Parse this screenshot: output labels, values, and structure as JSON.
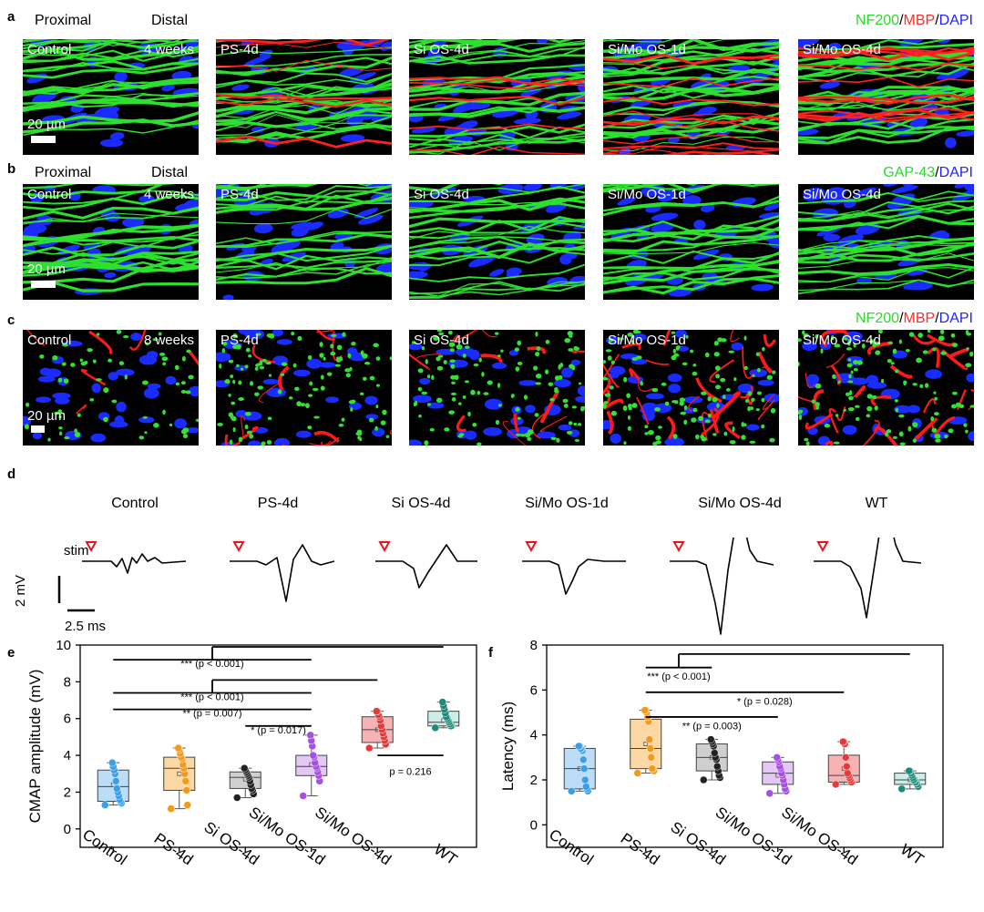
{
  "panel_labels": {
    "a": "a",
    "b": "b",
    "c": "c",
    "d": "d",
    "e": "e",
    "f": "f"
  },
  "panel_a": {
    "proximal": "Proximal",
    "distal": "Distal",
    "stain": [
      {
        "text": "NF200",
        "color": "#2bd82b"
      },
      {
        "text": "/",
        "color": "#000000"
      },
      {
        "text": "MBP",
        "color": "#ff2a2a"
      },
      {
        "text": "/",
        "color": "#000000"
      },
      {
        "text": "DAPI",
        "color": "#2323ff"
      }
    ],
    "tiles": [
      "Control",
      "PS-4d",
      "Si OS-4d",
      "Si/Mo OS-1d",
      "Si/Mo OS-4d"
    ],
    "timepoint": "4 weeks",
    "scale": "20 µm"
  },
  "panel_b": {
    "proximal": "Proximal",
    "distal": "Distal",
    "stain": [
      {
        "text": "GAP-43",
        "color": "#2bd82b"
      },
      {
        "text": "/",
        "color": "#000000"
      },
      {
        "text": "DAPI",
        "color": "#2323ff"
      }
    ],
    "tiles": [
      "Control",
      "PS-4d",
      "Si OS-4d",
      "Si/Mo OS-1d",
      "Si/Mo OS-4d"
    ],
    "timepoint": "4 weeks",
    "scale": "20 µm"
  },
  "panel_c": {
    "stain": [
      {
        "text": "NF200",
        "color": "#2bd82b"
      },
      {
        "text": "/",
        "color": "#000000"
      },
      {
        "text": "MBP",
        "color": "#ff2a2a"
      },
      {
        "text": "/",
        "color": "#000000"
      },
      {
        "text": "DAPI",
        "color": "#2323ff"
      }
    ],
    "tiles": [
      "Control",
      "PS-4d",
      "Si OS-4d",
      "Si/Mo OS-1d",
      "Si/Mo OS-4d"
    ],
    "timepoint": "8 weeks",
    "scale": "20 µm"
  },
  "panel_d": {
    "groups": [
      "Control",
      "PS-4d",
      "Si OS-4d",
      "Si/Mo OS-1d",
      "Si/Mo OS-4d",
      "WT"
    ],
    "stim": "stim",
    "vscale": "2 mV",
    "hscale": "2.5 ms"
  },
  "chart_data": [
    {
      "type": "box",
      "panel": "e",
      "ylabel": "CMAP amplitude (mV)",
      "ylim": [
        -1,
        10
      ],
      "yticks": [
        0,
        2,
        4,
        6,
        8,
        10
      ],
      "categories": [
        "Control",
        "PS-4d",
        "Si OS-4d",
        "Si/Mo OS-1d",
        "Si/Mo OS-4d",
        "WT"
      ],
      "colors": [
        "#3a9ee8",
        "#f39a1e",
        "#222222",
        "#a64fe0",
        "#e8383a",
        "#1b8a7a"
      ],
      "fills": [
        "#bcdcf7",
        "#fbd8a4",
        "#cfcfcf",
        "#e3c7f5",
        "#f7b3b3",
        "#cdeee6"
      ],
      "boxes": [
        {
          "min": 1.3,
          "q1": 1.5,
          "median": 2.3,
          "q3": 3.2,
          "max": 3.6,
          "mean": 2.4
        },
        {
          "min": 1.1,
          "q1": 2.1,
          "median": 3.3,
          "q3": 3.9,
          "max": 4.4,
          "mean": 3.0
        },
        {
          "min": 1.7,
          "q1": 2.2,
          "median": 2.8,
          "q3": 3.1,
          "max": 3.3,
          "mean": 2.7
        },
        {
          "min": 1.8,
          "q1": 2.9,
          "median": 3.4,
          "q3": 4.0,
          "max": 5.1,
          "mean": 3.5
        },
        {
          "min": 4.4,
          "q1": 4.7,
          "median": 5.4,
          "q3": 6.1,
          "max": 6.4,
          "mean": 5.4
        },
        {
          "min": 5.5,
          "q1": 5.6,
          "median": 5.8,
          "q3": 6.4,
          "max": 6.9,
          "mean": 5.9
        }
      ],
      "points": [
        [
          1.3,
          1.4,
          1.5,
          1.6,
          1.8,
          2.0,
          2.2,
          2.6,
          3.0,
          3.2,
          3.4,
          3.6
        ],
        [
          1.1,
          1.3,
          2.1,
          2.6,
          3.0,
          3.3,
          3.5,
          3.8,
          3.9,
          4.1,
          4.3,
          4.4
        ],
        [
          1.7,
          1.9,
          2.1,
          2.2,
          2.4,
          2.6,
          2.8,
          2.9,
          3.0,
          3.1,
          3.2,
          3.3
        ],
        [
          1.8,
          2.6,
          2.9,
          3.1,
          3.3,
          3.4,
          3.6,
          3.9,
          4.0,
          4.5,
          4.8,
          5.1
        ],
        [
          4.4,
          4.6,
          4.8,
          5.0,
          5.2,
          5.4,
          5.6,
          5.9,
          6.1,
          6.2,
          6.4,
          6.4
        ],
        [
          5.5,
          5.6,
          5.6,
          5.7,
          5.8,
          5.9,
          6.0,
          6.1,
          6.3,
          6.5,
          6.7,
          6.9
        ]
      ],
      "annotations": [
        "*** (p < 0.001)",
        "*** (p < 0.001)",
        "** (p = 0.007)",
        "* (p = 0.017)",
        "p = 0.216"
      ]
    },
    {
      "type": "box",
      "panel": "f",
      "ylabel": "Latency (ms)",
      "ylim": [
        -1,
        8
      ],
      "yticks": [
        0,
        2,
        4,
        6,
        8
      ],
      "categories": [
        "Control",
        "PS-4d",
        "Si OS-4d",
        "Si/Mo OS-1d",
        "Si/Mo OS-4d",
        "WT"
      ],
      "colors": [
        "#3a9ee8",
        "#f39a1e",
        "#222222",
        "#a64fe0",
        "#e8383a",
        "#1b8a7a"
      ],
      "fills": [
        "#bcdcf7",
        "#fbd8a4",
        "#cfcfcf",
        "#e3c7f5",
        "#f7b3b3",
        "#cdeee6"
      ],
      "boxes": [
        {
          "min": 1.5,
          "q1": 1.6,
          "median": 2.5,
          "q3": 3.4,
          "max": 3.5,
          "mean": 2.5
        },
        {
          "min": 2.3,
          "q1": 2.5,
          "median": 3.4,
          "q3": 4.7,
          "max": 5.1,
          "mean": 3.6
        },
        {
          "min": 2.0,
          "q1": 2.4,
          "median": 3.0,
          "q3": 3.6,
          "max": 3.8,
          "mean": 3.0
        },
        {
          "min": 1.4,
          "q1": 1.8,
          "median": 2.3,
          "q3": 2.8,
          "max": 3.0,
          "mean": 2.2
        },
        {
          "min": 1.8,
          "q1": 1.9,
          "median": 2.2,
          "q3": 3.1,
          "max": 3.7,
          "mean": 2.5
        },
        {
          "min": 1.6,
          "q1": 1.8,
          "median": 2.0,
          "q3": 2.3,
          "max": 2.4,
          "mean": 2.0
        }
      ],
      "points": [
        [
          1.5,
          1.5,
          1.6,
          1.7,
          2.0,
          2.5,
          2.9,
          3.3,
          3.4,
          3.4,
          3.5,
          3.5
        ],
        [
          2.3,
          2.4,
          2.5,
          2.5,
          3.0,
          3.4,
          3.8,
          4.6,
          4.8,
          5.0,
          5.1,
          5.1
        ],
        [
          2.0,
          2.1,
          2.2,
          2.4,
          2.6,
          2.9,
          3.0,
          3.2,
          3.5,
          3.6,
          3.7,
          3.8
        ],
        [
          1.4,
          1.5,
          1.6,
          1.8,
          2.0,
          2.2,
          2.3,
          2.5,
          2.6,
          2.8,
          2.9,
          3.0
        ],
        [
          1.8,
          1.9,
          1.9,
          2.0,
          2.1,
          2.2,
          2.3,
          2.6,
          3.0,
          3.6,
          3.7,
          3.7
        ],
        [
          1.6,
          1.7,
          1.8,
          1.9,
          1.9,
          2.0,
          2.0,
          2.1,
          2.2,
          2.3,
          2.4,
          2.4
        ]
      ],
      "annotations": [
        "*** (p < 0.001)",
        "* (p = 0.028)",
        "** (p = 0.003)"
      ]
    }
  ]
}
